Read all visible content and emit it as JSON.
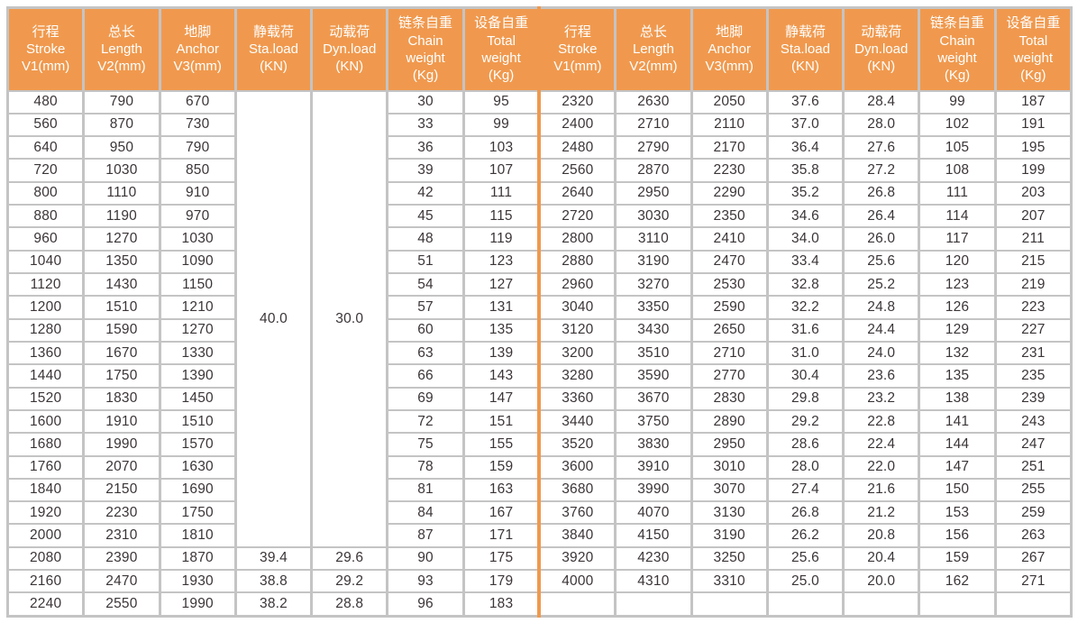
{
  "colors": {
    "header_bg": "#F0994E",
    "header_text": "#FFFFFF",
    "border_gray": "#C4C4C4",
    "cell_text": "#3B3537",
    "center_divider": "#F0994E",
    "cell_bg": "#FFFFFF"
  },
  "header": {
    "columns": [
      {
        "key": "stroke",
        "lines": [
          "行程",
          "Stroke",
          "V1(mm)"
        ]
      },
      {
        "key": "length",
        "lines": [
          "总长",
          "Length",
          "V2(mm)"
        ]
      },
      {
        "key": "anchor",
        "lines": [
          "地脚",
          "Anchor",
          "V3(mm)"
        ]
      },
      {
        "key": "sta-load",
        "lines": [
          "静载荷",
          "Sta.load",
          "(KN)"
        ]
      },
      {
        "key": "dyn-load",
        "lines": [
          "动载荷",
          "Dyn.load",
          "(KN)"
        ]
      },
      {
        "key": "chain-weight",
        "lines": [
          "链条自重",
          "Chain",
          "weight",
          "(Kg)"
        ]
      },
      {
        "key": "total-weight",
        "lines": [
          "设备自重",
          "Total",
          "weight",
          "(Kg)"
        ]
      }
    ]
  },
  "table": {
    "left": {
      "merged": {
        "sta": "40.0",
        "dyn": "30.0",
        "row_span": 20
      },
      "rows": [
        [
          "480",
          "790",
          "670",
          "",
          "",
          "30",
          "95"
        ],
        [
          "560",
          "870",
          "730",
          "",
          "",
          "33",
          "99"
        ],
        [
          "640",
          "950",
          "790",
          "",
          "",
          "36",
          "103"
        ],
        [
          "720",
          "1030",
          "850",
          "",
          "",
          "39",
          "107"
        ],
        [
          "800",
          "1110",
          "910",
          "",
          "",
          "42",
          "111"
        ],
        [
          "880",
          "1190",
          "970",
          "",
          "",
          "45",
          "115"
        ],
        [
          "960",
          "1270",
          "1030",
          "",
          "",
          "48",
          "119"
        ],
        [
          "1040",
          "1350",
          "1090",
          "",
          "",
          "51",
          "123"
        ],
        [
          "1120",
          "1430",
          "1150",
          "",
          "",
          "54",
          "127"
        ],
        [
          "1200",
          "1510",
          "1210",
          "",
          "",
          "57",
          "131"
        ],
        [
          "1280",
          "1590",
          "1270",
          "",
          "",
          "60",
          "135"
        ],
        [
          "1360",
          "1670",
          "1330",
          "",
          "",
          "63",
          "139"
        ],
        [
          "1440",
          "1750",
          "1390",
          "",
          "",
          "66",
          "143"
        ],
        [
          "1520",
          "1830",
          "1450",
          "",
          "",
          "69",
          "147"
        ],
        [
          "1600",
          "1910",
          "1510",
          "",
          "",
          "72",
          "151"
        ],
        [
          "1680",
          "1990",
          "1570",
          "",
          "",
          "75",
          "155"
        ],
        [
          "1760",
          "2070",
          "1630",
          "",
          "",
          "78",
          "159"
        ],
        [
          "1840",
          "2150",
          "1690",
          "",
          "",
          "81",
          "163"
        ],
        [
          "1920",
          "2230",
          "1750",
          "",
          "",
          "84",
          "167"
        ],
        [
          "2000",
          "2310",
          "1810",
          "",
          "",
          "87",
          "171"
        ],
        [
          "2080",
          "2390",
          "1870",
          "39.4",
          "29.6",
          "90",
          "175"
        ],
        [
          "2160",
          "2470",
          "1930",
          "38.8",
          "29.2",
          "93",
          "179"
        ],
        [
          "2240",
          "2550",
          "1990",
          "38.2",
          "28.8",
          "96",
          "183"
        ]
      ]
    },
    "right": {
      "rows": [
        [
          "2320",
          "2630",
          "2050",
          "37.6",
          "28.4",
          "99",
          "187"
        ],
        [
          "2400",
          "2710",
          "2110",
          "37.0",
          "28.0",
          "102",
          "191"
        ],
        [
          "2480",
          "2790",
          "2170",
          "36.4",
          "27.6",
          "105",
          "195"
        ],
        [
          "2560",
          "2870",
          "2230",
          "35.8",
          "27.2",
          "108",
          "199"
        ],
        [
          "2640",
          "2950",
          "2290",
          "35.2",
          "26.8",
          "111",
          "203"
        ],
        [
          "2720",
          "3030",
          "2350",
          "34.6",
          "26.4",
          "114",
          "207"
        ],
        [
          "2800",
          "3110",
          "2410",
          "34.0",
          "26.0",
          "117",
          "211"
        ],
        [
          "2880",
          "3190",
          "2470",
          "33.4",
          "25.6",
          "120",
          "215"
        ],
        [
          "2960",
          "3270",
          "2530",
          "32.8",
          "25.2",
          "123",
          "219"
        ],
        [
          "3040",
          "3350",
          "2590",
          "32.2",
          "24.8",
          "126",
          "223"
        ],
        [
          "3120",
          "3430",
          "2650",
          "31.6",
          "24.4",
          "129",
          "227"
        ],
        [
          "3200",
          "3510",
          "2710",
          "31.0",
          "24.0",
          "132",
          "231"
        ],
        [
          "3280",
          "3590",
          "2770",
          "30.4",
          "23.6",
          "135",
          "235"
        ],
        [
          "3360",
          "3670",
          "2830",
          "29.8",
          "23.2",
          "138",
          "239"
        ],
        [
          "3440",
          "3750",
          "2890",
          "29.2",
          "22.8",
          "141",
          "243"
        ],
        [
          "3520",
          "3830",
          "2950",
          "28.6",
          "22.4",
          "144",
          "247"
        ],
        [
          "3600",
          "3910",
          "3010",
          "28.0",
          "22.0",
          "147",
          "251"
        ],
        [
          "3680",
          "3990",
          "3070",
          "27.4",
          "21.6",
          "150",
          "255"
        ],
        [
          "3760",
          "4070",
          "3130",
          "26.8",
          "21.2",
          "153",
          "259"
        ],
        [
          "3840",
          "4150",
          "3190",
          "26.2",
          "20.8",
          "156",
          "263"
        ],
        [
          "3920",
          "4230",
          "3250",
          "25.6",
          "20.4",
          "159",
          "267"
        ],
        [
          "4000",
          "4310",
          "3310",
          "25.0",
          "20.0",
          "162",
          "271"
        ]
      ],
      "trailing_empty_rows": 1
    }
  }
}
